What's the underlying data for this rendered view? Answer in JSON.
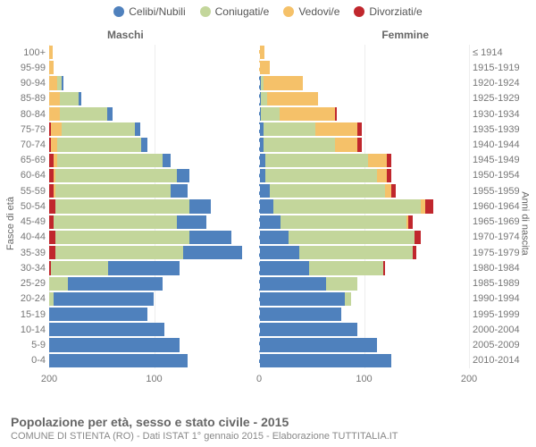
{
  "type": "population-pyramid",
  "legend": [
    {
      "label": "Celibi/Nubili",
      "color": "#4f81bd"
    },
    {
      "label": "Coniugati/e",
      "color": "#c3d69b"
    },
    {
      "label": "Vedovi/e",
      "color": "#f5c169"
    },
    {
      "label": "Divorziati/e",
      "color": "#c0272d"
    }
  ],
  "side_labels": {
    "male": "Maschi",
    "female": "Femmine"
  },
  "axis_titles": {
    "left": "Fasce di età",
    "right": "Anni di nascita"
  },
  "xaxis": {
    "max": 200,
    "ticks": [
      200,
      100,
      0,
      100,
      200
    ]
  },
  "colors": {
    "series": [
      "#4f81bd",
      "#c3d69b",
      "#f5c169",
      "#c0272d"
    ],
    "grid": "#eeeeee",
    "centerline": "#ffffff",
    "background": "#ffffff",
    "text": "#777777"
  },
  "fontsize": {
    "legend": 12,
    "axis": 11,
    "side": 12,
    "title": 14,
    "subtitle": 11
  },
  "age_bands": [
    {
      "age": "100+",
      "birth": "≤ 1914",
      "male": [
        0,
        0,
        3,
        0
      ],
      "female": [
        0,
        0,
        5,
        0
      ]
    },
    {
      "age": "95-99",
      "birth": "1915-1919",
      "male": [
        0,
        0,
        4,
        0
      ],
      "female": [
        0,
        0,
        10,
        0
      ]
    },
    {
      "age": "90-94",
      "birth": "1920-1924",
      "male": [
        2,
        4,
        8,
        0
      ],
      "female": [
        2,
        2,
        38,
        0
      ]
    },
    {
      "age": "85-89",
      "birth": "1925-1929",
      "male": [
        3,
        18,
        10,
        0
      ],
      "female": [
        2,
        6,
        48,
        0
      ]
    },
    {
      "age": "80-84",
      "birth": "1930-1934",
      "male": [
        5,
        45,
        10,
        0
      ],
      "female": [
        2,
        18,
        52,
        2
      ]
    },
    {
      "age": "75-79",
      "birth": "1935-1939",
      "male": [
        5,
        70,
        10,
        2
      ],
      "female": [
        4,
        50,
        40,
        4
      ]
    },
    {
      "age": "70-74",
      "birth": "1940-1944",
      "male": [
        6,
        80,
        6,
        2
      ],
      "female": [
        4,
        68,
        22,
        4
      ]
    },
    {
      "age": "65-69",
      "birth": "1945-1949",
      "male": [
        8,
        100,
        4,
        4
      ],
      "female": [
        6,
        98,
        18,
        4
      ]
    },
    {
      "age": "60-64",
      "birth": "1950-1954",
      "male": [
        12,
        116,
        2,
        4
      ],
      "female": [
        6,
        106,
        10,
        4
      ]
    },
    {
      "age": "55-59",
      "birth": "1955-1959",
      "male": [
        16,
        110,
        2,
        4
      ],
      "female": [
        10,
        110,
        6,
        4
      ]
    },
    {
      "age": "50-54",
      "birth": "1960-1964",
      "male": [
        20,
        128,
        0,
        6
      ],
      "female": [
        14,
        140,
        4,
        8
      ]
    },
    {
      "age": "45-49",
      "birth": "1965-1969",
      "male": [
        28,
        118,
        0,
        4
      ],
      "female": [
        20,
        120,
        2,
        4
      ]
    },
    {
      "age": "40-44",
      "birth": "1970-1974",
      "male": [
        40,
        128,
        0,
        6
      ],
      "female": [
        28,
        120,
        0,
        6
      ]
    },
    {
      "age": "35-39",
      "birth": "1975-1979",
      "male": [
        56,
        122,
        0,
        6
      ],
      "female": [
        38,
        108,
        0,
        4
      ]
    },
    {
      "age": "30-34",
      "birth": "1980-1984",
      "male": [
        68,
        54,
        0,
        2
      ],
      "female": [
        48,
        70,
        0,
        2
      ]
    },
    {
      "age": "25-29",
      "birth": "1985-1989",
      "male": [
        90,
        18,
        0,
        0
      ],
      "female": [
        64,
        30,
        0,
        0
      ]
    },
    {
      "age": "20-24",
      "birth": "1990-1994",
      "male": [
        96,
        4,
        0,
        0
      ],
      "female": [
        82,
        6,
        0,
        0
      ]
    },
    {
      "age": "15-19",
      "birth": "1995-1999",
      "male": [
        94,
        0,
        0,
        0
      ],
      "female": [
        78,
        0,
        0,
        0
      ]
    },
    {
      "age": "10-14",
      "birth": "2000-2004",
      "male": [
        110,
        0,
        0,
        0
      ],
      "female": [
        94,
        0,
        0,
        0
      ]
    },
    {
      "age": "5-9",
      "birth": "2005-2009",
      "male": [
        124,
        0,
        0,
        0
      ],
      "female": [
        112,
        0,
        0,
        0
      ]
    },
    {
      "age": "0-4",
      "birth": "2010-2014",
      "male": [
        132,
        0,
        0,
        0
      ],
      "female": [
        126,
        0,
        0,
        0
      ]
    }
  ],
  "footer": {
    "title": "Popolazione per età, sesso e stato civile - 2015",
    "subtitle": "COMUNE DI STIENTA (RO) - Dati ISTAT 1° gennaio 2015 - Elaborazione TUTTITALIA.IT"
  }
}
